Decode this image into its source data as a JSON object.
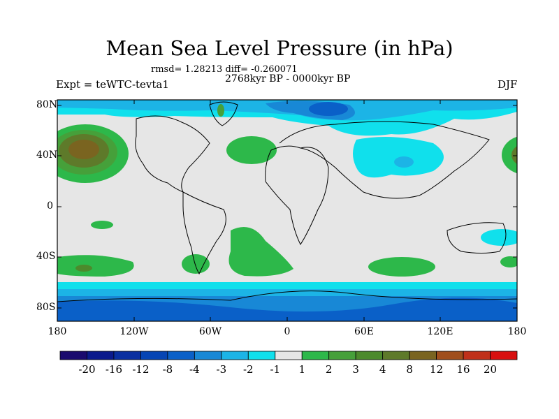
{
  "title": "Mean Sea Level Pressure (in hPa)",
  "stats": "rmsd= 1.28213 diff= -0.260071",
  "period": "2768kyr BP - 0000kyr BP",
  "experiment": "Expt = teWTC-tevta1",
  "season": "DJF",
  "lat_labels": [
    "80N",
    "40N",
    "0",
    "40S",
    "80S"
  ],
  "lon_labels": [
    "180",
    "120W",
    "60W",
    "0",
    "60E",
    "120E",
    "180"
  ],
  "colorbar": {
    "colors": [
      "#1a0a6e",
      "#0b1a8c",
      "#0a2fa0",
      "#0645b4",
      "#0a60c8",
      "#1888d6",
      "#1cb4e6",
      "#10e0ec",
      "#e6e6e6",
      "#2db84a",
      "#46a03a",
      "#4c8a2c",
      "#5e7a2a",
      "#7a6420",
      "#a04e1c",
      "#c0301a",
      "#d81010"
    ],
    "labels": [
      "-20",
      "-16",
      "-12",
      "-8",
      "-4",
      "-3",
      "-2",
      "-1",
      "1",
      "2",
      "3",
      "4",
      "8",
      "12",
      "16",
      "20"
    ]
  }
}
